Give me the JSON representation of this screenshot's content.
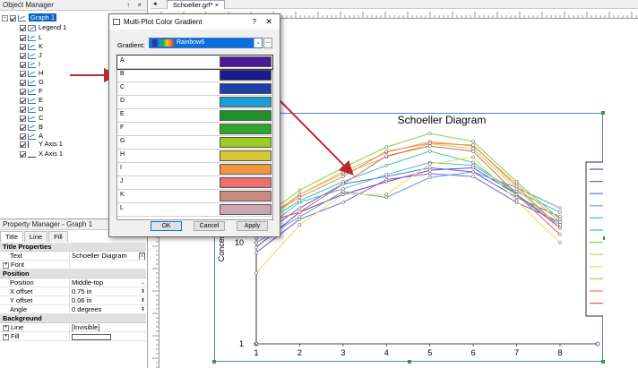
{
  "object_manager": {
    "title": "Object Manager",
    "buttons": "↑ ×",
    "graph_label": "Graph 1",
    "legend_label": "Legend 1",
    "plots": [
      "L",
      "K",
      "J",
      "I",
      "H",
      "G",
      "F",
      "E",
      "D",
      "C",
      "B",
      "A"
    ],
    "y_axis": "Y Axis 1",
    "x_axis": "X Axis 1"
  },
  "property_manager": {
    "title": "Property Manager - Graph 1",
    "tabs": [
      "Title",
      "Line",
      "Fill"
    ],
    "sections": {
      "title_properties": "Title Properties",
      "position": "Position",
      "background": "Background"
    },
    "rows": {
      "text": {
        "key": "Text",
        "value": "Schoeller Diagram"
      },
      "font": {
        "key": "Font",
        "value": ""
      },
      "position": {
        "key": "Position",
        "value": "Middle-top"
      },
      "x_offset": {
        "key": "X offset",
        "value": "0.75 in"
      },
      "y_offset": {
        "key": "Y offset",
        "value": "0.06 in"
      },
      "angle": {
        "key": "Angle",
        "value": "0 degrees"
      },
      "line": {
        "key": "Line",
        "value": "[Invisible]"
      },
      "fill": {
        "key": "Fill",
        "value": ""
      }
    }
  },
  "document_tab": "Schoeller.grf*",
  "dialog": {
    "title": "Multi-Plot Color Gradient",
    "help": "?",
    "close": "✕",
    "gradient_label": "Gradient:",
    "gradient_value": "Rainbow6",
    "more_button": "...",
    "entries": [
      {
        "label": "A",
        "color": "#4b1a96"
      },
      {
        "label": "B",
        "color": "#1a1a90"
      },
      {
        "label": "C",
        "color": "#1e40a8"
      },
      {
        "label": "D",
        "color": "#1aa0d0"
      },
      {
        "label": "E",
        "color": "#1f8f2c"
      },
      {
        "label": "F",
        "color": "#2fa52a"
      },
      {
        "label": "G",
        "color": "#9ccc1c"
      },
      {
        "label": "H",
        "color": "#d8c834"
      },
      {
        "label": "I",
        "color": "#f0963c"
      },
      {
        "label": "J",
        "color": "#ec6e6e"
      },
      {
        "label": "K",
        "color": "#c88a7c"
      },
      {
        "label": "L",
        "color": "#c8a8ae"
      }
    ],
    "ok": "OK",
    "cancel": "Cancel",
    "apply": "Apply"
  },
  "chart_data": {
    "type": "line",
    "title": "Schoeller Diagram",
    "ylabel": "Concentr",
    "xlabel": "",
    "x": [
      1,
      2,
      3,
      4,
      5,
      6,
      7,
      8
    ],
    "ylim": [
      1,
      100
    ],
    "yscale": "log",
    "ytick_labels": [
      "1",
      "10"
    ],
    "xtick_labels": [
      "1",
      "2",
      "3",
      "4",
      "5",
      "6",
      "7",
      "8"
    ],
    "grid": false,
    "legend_position": "right",
    "series": [
      {
        "name": "A",
        "color": "#7b3fb8",
        "values": [
          9,
          20,
          30,
          40,
          52,
          55,
          30,
          14
        ]
      },
      {
        "name": "B",
        "color": "#7a5ae0",
        "values": [
          8,
          17,
          25,
          42,
          48,
          45,
          25,
          16
        ]
      },
      {
        "name": "C",
        "color": "#4a6ad8",
        "values": [
          11,
          22,
          38,
          45,
          55,
          50,
          28,
          18
        ]
      },
      {
        "name": "D",
        "color": "#5fa0d8",
        "values": [
          10,
          18,
          32,
          28,
          44,
          50,
          35,
          22
        ]
      },
      {
        "name": "E",
        "color": "#4ab6d8",
        "values": [
          12,
          25,
          34,
          47,
          62,
          58,
          32,
          20
        ]
      },
      {
        "name": "F",
        "color": "#3cc8a8",
        "values": [
          14,
          26,
          40,
          58,
          80,
          62,
          30,
          15
        ]
      },
      {
        "name": "G",
        "color": "#7ad840",
        "values": [
          16,
          33,
          55,
          88,
          120,
          100,
          40,
          17
        ]
      },
      {
        "name": "H",
        "color": "#b8d850",
        "values": [
          13,
          30,
          48,
          70,
          95,
          85,
          34,
          14
        ]
      },
      {
        "name": "I",
        "color": "#e8e050",
        "values": [
          5,
          15,
          30,
          30,
          60,
          70,
          26,
          10
        ]
      },
      {
        "name": "J",
        "color": "#f0b050",
        "values": [
          15,
          30,
          50,
          78,
          100,
          90,
          38,
          16
        ]
      },
      {
        "name": "K",
        "color": "#f08060",
        "values": [
          16,
          28,
          45,
          80,
          96,
          92,
          36,
          14
        ]
      },
      {
        "name": "L",
        "color": "#e85a5a",
        "values": [
          15,
          20,
          38,
          72,
          90,
          80,
          30,
          12
        ]
      }
    ]
  }
}
